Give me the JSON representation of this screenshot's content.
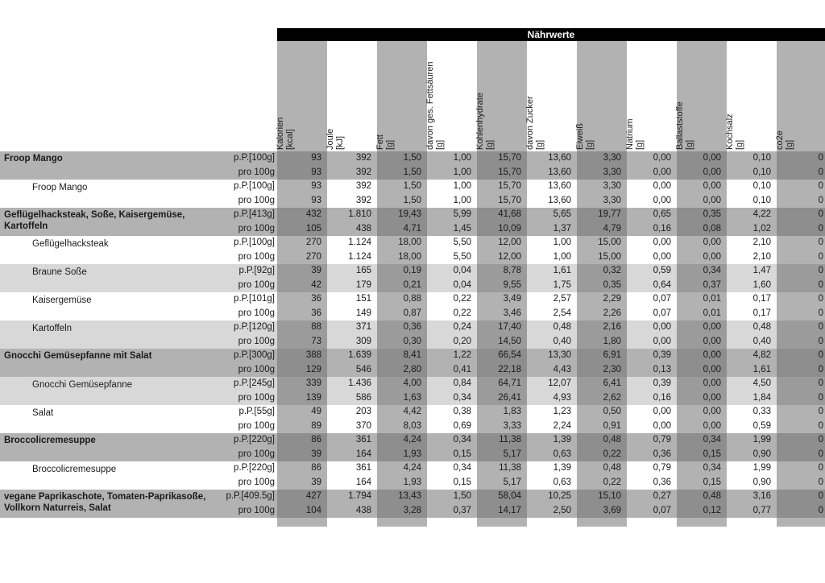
{
  "title": "Nährwerte",
  "columns": [
    {
      "name": "Kalorien",
      "unit": "[kcal]"
    },
    {
      "name": "Joule",
      "unit": "[kJ]"
    },
    {
      "name": "Fett",
      "unit": "[g]"
    },
    {
      "name": "davon ges. Fettsäuren",
      "unit": "[g]"
    },
    {
      "name": "Kohlenhydrate",
      "unit": "[g]"
    },
    {
      "name": "davon Zucker",
      "unit": "[g]"
    },
    {
      "name": "Eiweiß",
      "unit": "[g]"
    },
    {
      "name": "Natrium",
      "unit": "[g]"
    },
    {
      "name": "Ballaststoffe",
      "unit": "[g]"
    },
    {
      "name": "Kochsalz",
      "unit": "[g]"
    },
    {
      "name": "co2e",
      "unit": "[g]"
    }
  ],
  "colors": {
    "title_bg": "#000000",
    "title_text": "#ffffff",
    "stripe_gray": "#b2b2b2",
    "row_section": "#b2b2b2",
    "row_light": "#d8d8d8",
    "cell_section_dark": "#8e8e8e",
    "cell_light_dark": "#9b9b9b"
  },
  "items": [
    {
      "name": "Froop Mango",
      "type": "section",
      "shade": "section",
      "rows": [
        {
          "portion": "p.P.[100g]",
          "values": [
            "93",
            "392",
            "1,50",
            "1,00",
            "15,70",
            "13,60",
            "3,30",
            "0,00",
            "0,00",
            "0,10",
            "0"
          ]
        },
        {
          "portion": "pro 100g",
          "values": [
            "93",
            "392",
            "1,50",
            "1,00",
            "15,70",
            "13,60",
            "3,30",
            "0,00",
            "0,00",
            "0,10",
            "0"
          ]
        }
      ]
    },
    {
      "name": "Froop Mango",
      "type": "sub",
      "shade": "white",
      "rows": [
        {
          "portion": "p.P.[100g]",
          "values": [
            "93",
            "392",
            "1,50",
            "1,00",
            "15,70",
            "13,60",
            "3,30",
            "0,00",
            "0,00",
            "0,10",
            "0"
          ]
        },
        {
          "portion": "pro 100g",
          "values": [
            "93",
            "392",
            "1,50",
            "1,00",
            "15,70",
            "13,60",
            "3,30",
            "0,00",
            "0,00",
            "0,10",
            "0"
          ]
        }
      ]
    },
    {
      "name": "Geflügelhacksteak, Soße, Kaisergemüse, Kartoffeln",
      "type": "section",
      "shade": "section",
      "rows": [
        {
          "portion": "p.P.[413g]",
          "values": [
            "432",
            "1.810",
            "19,43",
            "5,99",
            "41,68",
            "5,65",
            "19,77",
            "0,65",
            "0,35",
            "4,22",
            "0"
          ]
        },
        {
          "portion": "pro 100g",
          "values": [
            "105",
            "438",
            "4,71",
            "1,45",
            "10,09",
            "1,37",
            "4,79",
            "0,16",
            "0,08",
            "1,02",
            "0"
          ]
        }
      ]
    },
    {
      "name": "Geflügelhacksteak",
      "type": "sub",
      "shade": "white",
      "rows": [
        {
          "portion": "p.P.[100g]",
          "values": [
            "270",
            "1.124",
            "18,00",
            "5,50",
            "12,00",
            "1,00",
            "15,00",
            "0,00",
            "0,00",
            "2,10",
            "0"
          ]
        },
        {
          "portion": "pro 100g",
          "values": [
            "270",
            "1.124",
            "18,00",
            "5,50",
            "12,00",
            "1,00",
            "15,00",
            "0,00",
            "0,00",
            "2,10",
            "0"
          ]
        }
      ]
    },
    {
      "name": "Braune Soße",
      "type": "sub",
      "shade": "light",
      "rows": [
        {
          "portion": "p.P.[92g]",
          "values": [
            "39",
            "165",
            "0,19",
            "0,04",
            "8,78",
            "1,61",
            "0,32",
            "0,59",
            "0,34",
            "1,47",
            "0"
          ]
        },
        {
          "portion": "pro 100g",
          "values": [
            "42",
            "179",
            "0,21",
            "0,04",
            "9,55",
            "1,75",
            "0,35",
            "0,64",
            "0,37",
            "1,60",
            "0"
          ]
        }
      ]
    },
    {
      "name": "Kaisergemüse",
      "type": "sub",
      "shade": "white",
      "rows": [
        {
          "portion": "p.P.[101g]",
          "values": [
            "36",
            "151",
            "0,88",
            "0,22",
            "3,49",
            "2,57",
            "2,29",
            "0,07",
            "0,01",
            "0,17",
            "0"
          ]
        },
        {
          "portion": "pro 100g",
          "values": [
            "36",
            "149",
            "0,87",
            "0,22",
            "3,46",
            "2,54",
            "2,26",
            "0,07",
            "0,01",
            "0,17",
            "0"
          ]
        }
      ]
    },
    {
      "name": "Kartoffeln",
      "type": "sub",
      "shade": "light",
      "rows": [
        {
          "portion": "p.P.[120g]",
          "values": [
            "88",
            "371",
            "0,36",
            "0,24",
            "17,40",
            "0,48",
            "2,16",
            "0,00",
            "0,00",
            "0,48",
            "0"
          ]
        },
        {
          "portion": "pro 100g",
          "values": [
            "73",
            "309",
            "0,30",
            "0,20",
            "14,50",
            "0,40",
            "1,80",
            "0,00",
            "0,00",
            "0,40",
            "0"
          ]
        }
      ]
    },
    {
      "name": "Gnocchi Gemüsepfanne mit Salat",
      "type": "section",
      "shade": "section",
      "rows": [
        {
          "portion": "p.P.[300g]",
          "values": [
            "388",
            "1.639",
            "8,41",
            "1,22",
            "66,54",
            "13,30",
            "6,91",
            "0,39",
            "0,00",
            "4,82",
            "0"
          ]
        },
        {
          "portion": "pro 100g",
          "values": [
            "129",
            "546",
            "2,80",
            "0,41",
            "22,18",
            "4,43",
            "2,30",
            "0,13",
            "0,00",
            "1,61",
            "0"
          ]
        }
      ]
    },
    {
      "name": "Gnocchi Gemüsepfanne",
      "type": "sub",
      "shade": "light",
      "rows": [
        {
          "portion": "p.P.[245g]",
          "values": [
            "339",
            "1.436",
            "4,00",
            "0,84",
            "64,71",
            "12,07",
            "6,41",
            "0,39",
            "0,00",
            "4,50",
            "0"
          ]
        },
        {
          "portion": "pro 100g",
          "values": [
            "139",
            "586",
            "1,63",
            "0,34",
            "26,41",
            "4,93",
            "2,62",
            "0,16",
            "0,00",
            "1,84",
            "0"
          ]
        }
      ]
    },
    {
      "name": "Salat",
      "type": "sub",
      "shade": "white",
      "rows": [
        {
          "portion": "p.P.[55g]",
          "values": [
            "49",
            "203",
            "4,42",
            "0,38",
            "1,83",
            "1,23",
            "0,50",
            "0,00",
            "0,00",
            "0,33",
            "0"
          ]
        },
        {
          "portion": "pro 100g",
          "values": [
            "89",
            "370",
            "8,03",
            "0,69",
            "3,33",
            "2,24",
            "0,91",
            "0,00",
            "0,00",
            "0,59",
            "0"
          ]
        }
      ]
    },
    {
      "name": "Broccolicremesuppe",
      "type": "section",
      "shade": "section",
      "rows": [
        {
          "portion": "p.P.[220g]",
          "values": [
            "86",
            "361",
            "4,24",
            "0,34",
            "11,38",
            "1,39",
            "0,48",
            "0,79",
            "0,34",
            "1,99",
            "0"
          ]
        },
        {
          "portion": "pro 100g",
          "values": [
            "39",
            "164",
            "1,93",
            "0,15",
            "5,17",
            "0,63",
            "0,22",
            "0,36",
            "0,15",
            "0,90",
            "0"
          ]
        }
      ]
    },
    {
      "name": "Broccolicremesuppe",
      "type": "sub",
      "shade": "white",
      "rows": [
        {
          "portion": "p.P.[220g]",
          "values": [
            "86",
            "361",
            "4,24",
            "0,34",
            "11,38",
            "1,39",
            "0,48",
            "0,79",
            "0,34",
            "1,99",
            "0"
          ]
        },
        {
          "portion": "pro 100g",
          "values": [
            "39",
            "164",
            "1,93",
            "0,15",
            "5,17",
            "0,63",
            "0,22",
            "0,36",
            "0,15",
            "0,90",
            "0"
          ]
        }
      ]
    },
    {
      "name": "vegane Paprikaschote, Tomaten-Paprikasoße, Vollkorn Naturreis, Salat",
      "type": "section",
      "shade": "section",
      "rows": [
        {
          "portion": "p.P.[409.5g]",
          "values": [
            "427",
            "1.794",
            "13,43",
            "1,50",
            "58,04",
            "10,25",
            "15,10",
            "0,27",
            "0,48",
            "3,16",
            "0"
          ]
        },
        {
          "portion": "pro 100g",
          "values": [
            "104",
            "438",
            "3,28",
            "0,37",
            "14,17",
            "2,50",
            "3,69",
            "0,07",
            "0,12",
            "0,77",
            "0"
          ]
        }
      ]
    }
  ]
}
